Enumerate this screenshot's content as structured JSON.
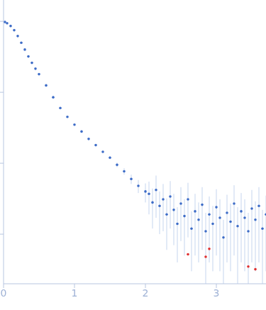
{
  "chart_data": {
    "type": "scatter",
    "log": "y",
    "grid": false,
    "tick_labels": "x",
    "xlim": [
      0,
      3.7
    ],
    "xticks": [
      0,
      1,
      2,
      3
    ],
    "ylim": [
      0.002,
      20
    ],
    "yticks": [
      0.01,
      0.1,
      1,
      10
    ],
    "series": [
      {
        "color": "#3d6cc7",
        "marker": "circle",
        "x": [
          0.02,
          0.05,
          0.1,
          0.15,
          0.2,
          0.25,
          0.3,
          0.35,
          0.4,
          0.45,
          0.5,
          0.6,
          0.7,
          0.8,
          0.9,
          1.0,
          1.1,
          1.2,
          1.3,
          1.4,
          1.5,
          1.6,
          1.7,
          1.8,
          1.9,
          2.0,
          2.05,
          2.1,
          2.15,
          2.2,
          2.25,
          2.3,
          2.35,
          2.4,
          2.45,
          2.5,
          2.55,
          2.6,
          2.65,
          2.7,
          2.75,
          2.8,
          2.85,
          2.9,
          2.95,
          3.0,
          3.05,
          3.1,
          3.15,
          3.2,
          3.25,
          3.3,
          3.35,
          3.4,
          3.45,
          3.5,
          3.55,
          3.6,
          3.65,
          3.7
        ],
        "values": [
          9.8,
          9.4,
          8.6,
          7.5,
          6.2,
          5.0,
          4.0,
          3.2,
          2.6,
          2.15,
          1.8,
          1.25,
          0.85,
          0.6,
          0.45,
          0.35,
          0.28,
          0.22,
          0.18,
          0.145,
          0.12,
          0.095,
          0.077,
          0.06,
          0.048,
          0.04,
          0.037,
          0.028,
          0.042,
          0.025,
          0.031,
          0.019,
          0.034,
          0.022,
          0.014,
          0.027,
          0.018,
          0.031,
          0.012,
          0.021,
          0.016,
          0.026,
          0.011,
          0.019,
          0.014,
          0.024,
          0.017,
          0.009,
          0.02,
          0.015,
          0.027,
          0.013,
          0.021,
          0.017,
          0.011,
          0.023,
          0.016,
          0.025,
          0.012,
          0.019
        ],
        "errors": [
          0.5,
          0.3,
          0.1,
          0.08,
          0.06,
          0.05,
          0.04,
          0.03,
          0.025,
          0.02,
          0.018,
          0.013,
          0.009,
          0.007,
          0.006,
          0.005,
          0.005,
          0.005,
          0.005,
          0.005,
          0.006,
          0.007,
          0.008,
          0.009,
          0.01,
          0.012,
          0.018,
          0.016,
          0.025,
          0.015,
          0.02,
          0.013,
          0.022,
          0.015,
          0.01,
          0.019,
          0.013,
          0.022,
          0.009,
          0.016,
          0.012,
          0.02,
          0.009,
          0.015,
          0.011,
          0.019,
          0.014,
          0.007,
          0.016,
          0.012,
          0.022,
          0.011,
          0.017,
          0.014,
          0.009,
          0.019,
          0.013,
          0.021,
          0.01,
          0.016
        ]
      },
      {
        "color": "#e03030",
        "marker": "circle",
        "x": [
          2.6,
          2.85,
          2.9,
          3.45,
          3.55
        ],
        "values": [
          0.0052,
          0.0048,
          0.0062,
          0.0035,
          0.0032
        ]
      }
    ]
  }
}
